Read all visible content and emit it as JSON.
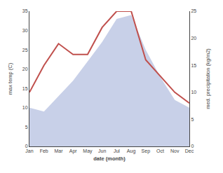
{
  "chart_data": {
    "type": "line",
    "xlabel": "date (month)",
    "ylabel": "max temp (C)",
    "y2label": "med. precipitation (kg/m2)",
    "categories": [
      "Jan",
      "Feb",
      "Mar",
      "Apr",
      "May",
      "Jun",
      "Jul",
      "Aug",
      "Sep",
      "Oct",
      "Nov",
      "Dec"
    ],
    "series": [
      {
        "type": "area",
        "color": "#c8d0e8",
        "values": [
          10,
          9,
          13,
          17,
          22,
          27,
          33,
          34,
          25,
          18,
          12,
          10
        ]
      },
      {
        "type": "line",
        "color": "#c0504d",
        "axis": "y2",
        "values": [
          10,
          15,
          19,
          17,
          17,
          22,
          25,
          25,
          16,
          13,
          10,
          8
        ]
      }
    ],
    "ylim": [
      0,
      35
    ],
    "yticks": [
      0,
      5,
      10,
      15,
      20,
      25,
      30,
      35
    ],
    "y2lim": [
      0,
      25
    ],
    "y2ticks": [
      0,
      5,
      10,
      15,
      20,
      25
    ],
    "grid": false
  }
}
